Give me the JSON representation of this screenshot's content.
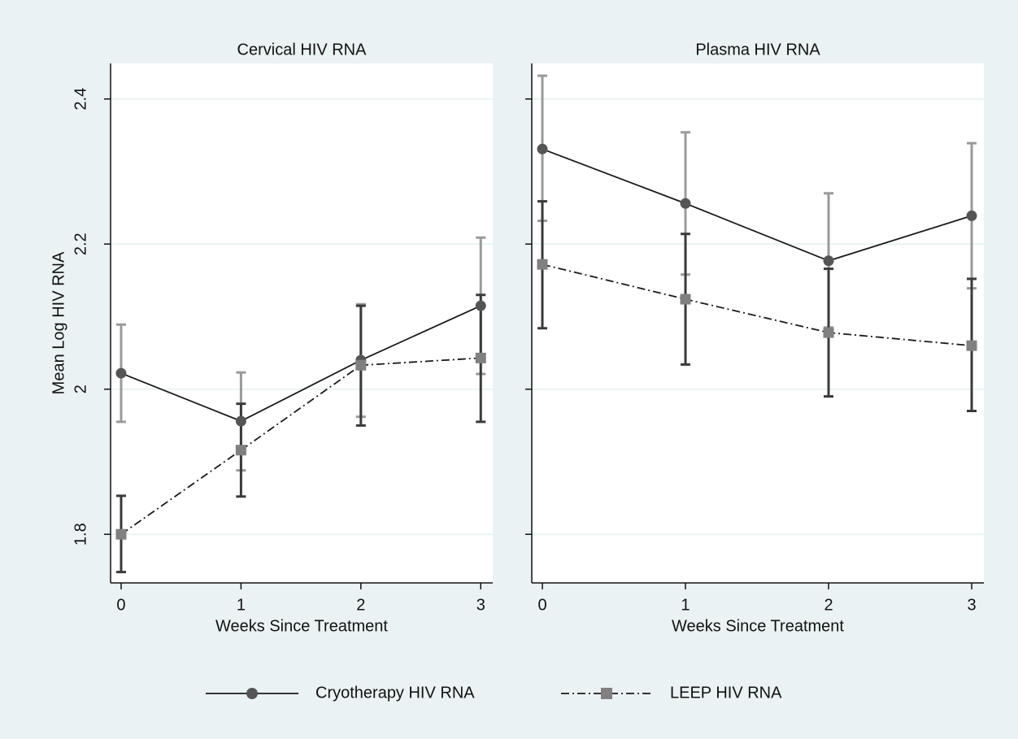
{
  "chart_data": [
    {
      "type": "line",
      "title": "Cervical HIV RNA",
      "xlabel": "Weeks Since Treatment",
      "ylabel": "Mean Log HIV RNA",
      "x": [
        0,
        1,
        2,
        3
      ],
      "xlim": [
        -0.088,
        3.1
      ],
      "xticks": [
        0,
        1,
        2,
        3
      ],
      "ylim": [
        1.733,
        2.449
      ],
      "yticks": [
        1.8,
        2,
        2.2,
        2.4
      ],
      "grid": true,
      "series": [
        {
          "name": "Cryotherapy HIV RNA",
          "color": "#555555",
          "line_color": "#1a1a1a",
          "ci_color": "#9a9a9a",
          "marker": "circle",
          "line_style": "solid",
          "values": [
            2.022,
            1.956,
            2.04,
            2.115
          ],
          "lower": [
            1.955,
            1.888,
            1.962,
            2.021
          ],
          "upper": [
            2.089,
            2.023,
            2.117,
            2.209
          ]
        },
        {
          "name": "LEEP HIV RNA",
          "color": "#808080",
          "line_color": "#1a1a1a",
          "ci_color": "#3a3a3a",
          "marker": "square",
          "line_style": "dashdot",
          "values": [
            1.8,
            1.916,
            2.033,
            2.043
          ],
          "lower": [
            1.748,
            1.852,
            1.95,
            1.955
          ],
          "upper": [
            1.853,
            1.98,
            2.115,
            2.13
          ]
        }
      ]
    },
    {
      "type": "line",
      "title": "Plasma HIV RNA",
      "xlabel": "Weeks Since Treatment",
      "x": [
        0,
        1,
        2,
        3
      ],
      "xlim": [
        -0.074,
        3.085
      ],
      "xticks": [
        0,
        1,
        2,
        3
      ],
      "ylim": [
        1.733,
        2.449
      ],
      "grid": true,
      "series": [
        {
          "name": "Cryotherapy HIV RNA",
          "color": "#555555",
          "line_color": "#1a1a1a",
          "ci_color": "#9a9a9a",
          "marker": "circle",
          "line_style": "solid",
          "values": [
            2.331,
            2.256,
            2.177,
            2.239
          ],
          "lower": [
            2.232,
            2.158,
            2.085,
            2.139
          ],
          "upper": [
            2.432,
            2.354,
            2.27,
            2.339
          ]
        },
        {
          "name": "LEEP HIV RNA",
          "color": "#808080",
          "line_color": "#1a1a1a",
          "ci_color": "#3a3a3a",
          "marker": "square",
          "line_style": "dashdot",
          "values": [
            2.172,
            2.124,
            2.078,
            2.06
          ],
          "lower": [
            2.084,
            2.034,
            1.99,
            1.97
          ],
          "upper": [
            2.259,
            2.214,
            2.166,
            2.152
          ]
        }
      ]
    }
  ]
}
